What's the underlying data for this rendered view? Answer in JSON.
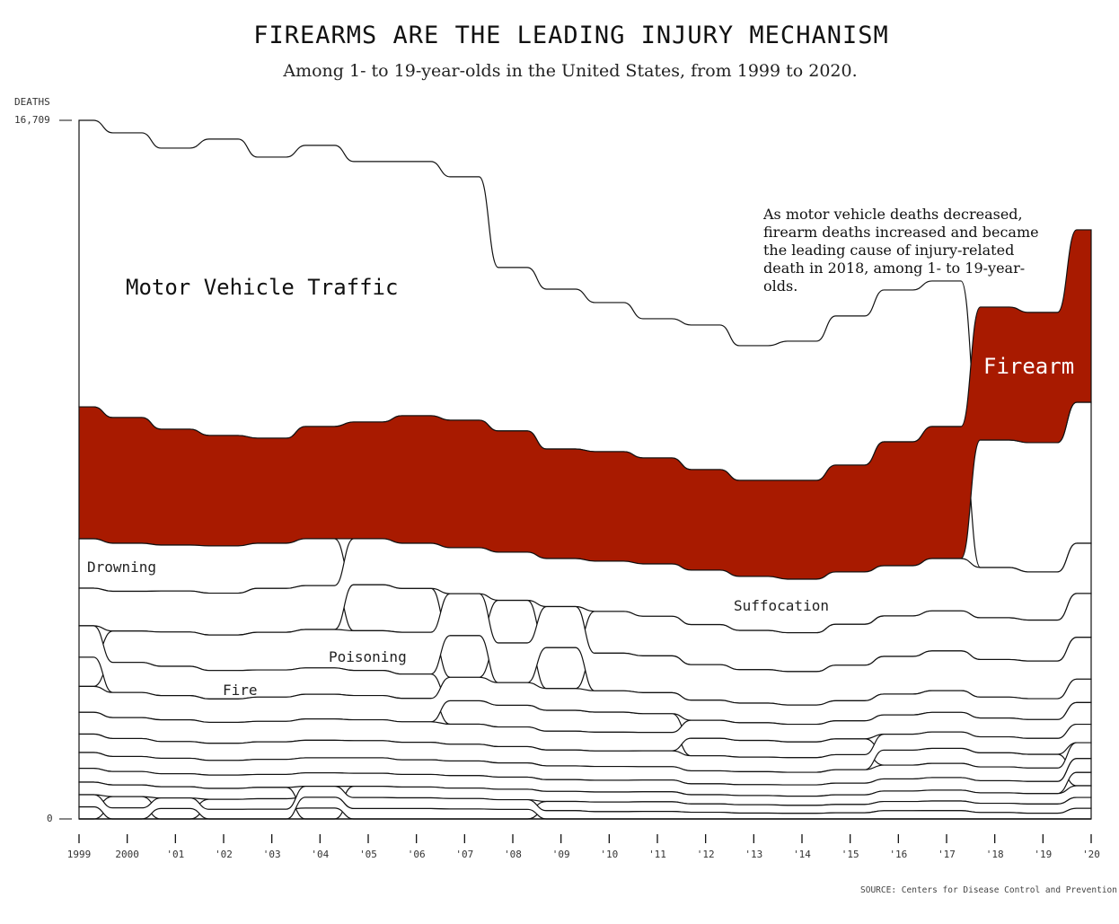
{
  "title": "FIREARMS ARE THE LEADING INJURY MECHANISM",
  "subtitle": "Among 1- to 19-year-olds in the United States, from 1999 to 2020.",
  "annotation": "As motor vehicle deaths decreased, firearm deaths increased and became the leading cause of injury-related death in 2018, among 1- to 19-year-olds.",
  "source": "SOURCE: Centers for Disease Control and Prevention",
  "colors": {
    "firearm": "#a81a00",
    "other": "#ffffff",
    "stroke": "#111111"
  },
  "chart_data": {
    "type": "area",
    "stacking": "ranked (largest on top each year)",
    "ylabel": "DEATHS",
    "ylim": [
      0,
      16709
    ],
    "y_ticks": [
      {
        "value": 0,
        "label": "0"
      },
      {
        "value": 16709,
        "label": "16,709"
      }
    ],
    "x": [
      1999,
      2000,
      2001,
      2002,
      2003,
      2004,
      2005,
      2006,
      2007,
      2008,
      2009,
      2010,
      2011,
      2012,
      2013,
      2014,
      2015,
      2016,
      2017,
      2018,
      2019,
      2020
    ],
    "x_tick_labels": [
      "1999",
      "2000",
      "'01",
      "'02",
      "'03",
      "'04",
      "'05",
      "'06",
      "'07",
      "'08",
      "'09",
      "'10",
      "'11",
      "'12",
      "'13",
      "'14",
      "'15",
      "'16",
      "'17",
      "'18",
      "'19",
      "'20"
    ],
    "series": [
      {
        "name": "Motor Vehicle Traffic",
        "color": "#ffffff",
        "values": [
          6852,
          6809,
          6723,
          7088,
          6723,
          6723,
          6229,
          6079,
          5821,
          3909,
          3823,
          3566,
          3329,
          3458,
          3222,
          3329,
          3566,
          3630,
          3480,
          3050,
          3093,
          3372
        ]
      },
      {
        "name": "Firearm",
        "color": "#a81a00",
        "values": [
          3157,
          3007,
          2771,
          2642,
          2513,
          2685,
          2792,
          3050,
          3050,
          2900,
          2620,
          2620,
          2535,
          2406,
          2298,
          2363,
          2556,
          2964,
          3157,
          3179,
          3115,
          4124
        ]
      },
      {
        "name": "Drowning",
        "color": "#ffffff",
        "values": [
          1180,
          1150,
          1100,
          1130,
          1080,
          1120,
          1100,
          1050,
          1000,
          1020,
          980,
          1000,
          950,
          960,
          940,
          930,
          980,
          970,
          960,
          1000,
          980,
          1050
        ]
      },
      {
        "name": "Suffocation",
        "color": "#ffffff",
        "values": [
          900,
          950,
          980,
          1000,
          1050,
          1050,
          1100,
          1080,
          1100,
          1150,
          1150,
          1200,
          1250,
          1300,
          1290,
          1280,
          1250,
          1200,
          1250,
          1200,
          1150,
          1200
        ]
      },
      {
        "name": "Poisoning",
        "color": "#ffffff",
        "values": [
          700,
          750,
          820,
          850,
          900,
          920,
          950,
          1000,
          1000,
          950,
          980,
          900,
          880,
          850,
          800,
          800,
          850,
          900,
          950,
          900,
          900,
          1000
        ]
      },
      {
        "name": "Fire",
        "color": "#ffffff",
        "values": [
          750,
          720,
          700,
          680,
          650,
          630,
          600,
          580,
          560,
          520,
          500,
          480,
          450,
          420,
          400,
          380,
          380,
          360,
          360,
          340,
          330,
          320
        ]
      },
      {
        "color": "#ffffff",
        "values": [
          620,
          600,
          580,
          560,
          580,
          590,
          580,
          560,
          560,
          540,
          520,
          510,
          500,
          480,
          470,
          460,
          480,
          500,
          520,
          500,
          500,
          560
        ]
      },
      {
        "color": "#ffffff",
        "values": [
          520,
          500,
          520,
          500,
          490,
          510,
          500,
          490,
          480,
          470,
          450,
          450,
          440,
          430,
          420,
          420,
          430,
          460,
          470,
          450,
          450,
          520
        ]
      },
      {
        "color": "#ffffff",
        "values": [
          440,
          430,
          400,
          410,
          420,
          420,
          410,
          420,
          400,
          390,
          380,
          370,
          380,
          360,
          350,
          350,
          360,
          380,
          390,
          380,
          380,
          440
        ]
      },
      {
        "color": "#ffffff",
        "values": [
          380,
          360,
          370,
          350,
          360,
          360,
          370,
          350,
          350,
          340,
          330,
          330,
          320,
          310,
          310,
          300,
          320,
          330,
          340,
          330,
          320,
          380
        ]
      },
      {
        "color": "#ffffff",
        "values": [
          330,
          320,
          310,
          320,
          310,
          320,
          310,
          300,
          300,
          290,
          280,
          280,
          280,
          260,
          260,
          270,
          280,
          290,
          300,
          290,
          290,
          330
        ]
      },
      {
        "color": "#ffffff",
        "values": [
          300,
          280,
          270,
          260,
          270,
          260,
          270,
          260,
          250,
          250,
          240,
          240,
          240,
          220,
          220,
          220,
          230,
          250,
          260,
          250,
          250,
          280
        ]
      },
      {
        "color": "#ffffff",
        "values": [
          290,
          270,
          250,
          240,
          250,
          260,
          250,
          250,
          240,
          230,
          220,
          230,
          230,
          200,
          200,
          190,
          200,
          220,
          230,
          220,
          220,
          260
        ]
      },
      {
        "color": "#ffffff",
        "values": [
          290,
          264,
          251,
          230,
          234,
          262,
          262,
          254,
          247,
          230,
          199,
          175,
          180,
          160,
          140,
          135,
          147,
          197,
          199,
          154,
          137,
          254
        ]
      }
    ]
  }
}
